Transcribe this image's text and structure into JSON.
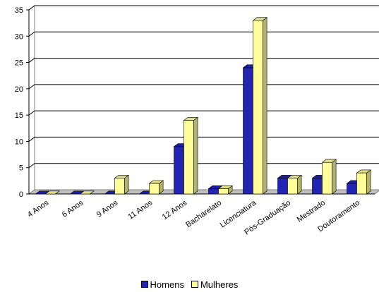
{
  "chart_data": {
    "type": "bar",
    "style": "3d-clustered-column",
    "categories": [
      "4 Anos",
      "6 Anos",
      "9 Anos",
      "11 Anos",
      "12 Anos",
      "Bacharelato",
      "Licenciatura",
      "Pós-Graduação",
      "Mestrado",
      "Doutoramento"
    ],
    "series": [
      {
        "name": "Homens",
        "color": "#2323b4",
        "values": [
          0,
          0,
          0,
          0,
          9,
          1,
          24,
          3,
          3,
          2
        ]
      },
      {
        "name": "Mulheres",
        "color": "#ffff99",
        "values": [
          0,
          0,
          3,
          2,
          14,
          1,
          33,
          3,
          6,
          4
        ]
      }
    ],
    "ylim": [
      0,
      35
    ],
    "yticks": [
      "0",
      "5",
      "10",
      "15",
      "20",
      "25",
      "30",
      "35"
    ],
    "grid": true,
    "legend_position": "bottom",
    "title": "",
    "xlabel": "",
    "ylabel": ""
  }
}
